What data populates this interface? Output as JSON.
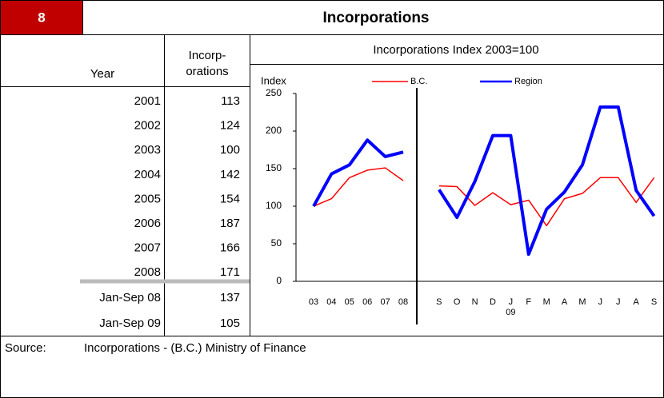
{
  "header": {
    "number": "8",
    "title": "Incorporations"
  },
  "table": {
    "header": {
      "year": "Year",
      "incorporations": [
        "Incorp-",
        "orations"
      ]
    },
    "rows": [
      [
        "2001",
        113
      ],
      [
        "2002",
        124
      ],
      [
        "2003",
        100
      ],
      [
        "2004",
        142
      ],
      [
        "2005",
        154
      ],
      [
        "2006",
        187
      ],
      [
        "2007",
        166
      ],
      [
        "2008",
        171
      ]
    ],
    "partial_rows": [
      [
        "Jan-Sep 08",
        137
      ],
      [
        "Jan-Sep 09",
        105
      ]
    ]
  },
  "chart_data": {
    "type": "line",
    "title": "Incorporations Index   2003=100",
    "y_label": "Index",
    "categories": [
      "03",
      "04",
      "05",
      "06",
      "07",
      "08",
      null,
      "S",
      "O",
      "N",
      "D",
      "J",
      "F",
      "M",
      "A",
      "M",
      "J",
      "J",
      "A",
      "S"
    ],
    "category_sublabel": "09",
    "series": [
      {
        "name": "B.C.",
        "color": "#ff0000",
        "values": [
          100,
          110,
          138,
          148,
          151,
          134,
          null,
          127,
          126,
          101,
          118,
          102,
          108,
          74,
          110,
          117,
          138,
          138,
          105,
          138
        ]
      },
      {
        "name": "Region",
        "color": "#0000ff",
        "values": [
          100,
          143,
          155,
          188,
          166,
          172,
          null,
          122,
          85,
          133,
          194,
          194,
          36,
          96,
          119,
          155,
          232,
          232,
          121,
          87
        ]
      }
    ],
    "ylim": [
      0,
      250
    ],
    "yticks": [
      0,
      50,
      100,
      150,
      200,
      250
    ]
  },
  "source": {
    "label": "Source:",
    "text": "Incorporations - (B.C.) Ministry of Finance"
  }
}
